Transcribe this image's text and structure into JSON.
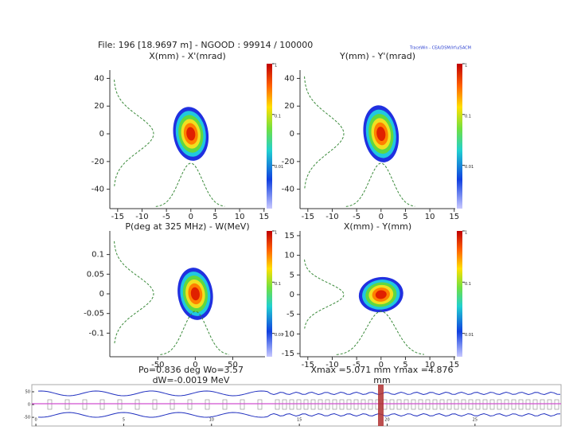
{
  "header": {
    "file_line": "File: 196 [18.9697 m] - NGOOD : 99914 / 100000",
    "brand": "TraceWin - CEA/DSM/Irfu/SACM"
  },
  "chart_data": [
    {
      "type": "density",
      "title": "X(mm) - X'(mrad)",
      "xlim": [
        -16.6,
        15.2
      ],
      "ylim": [
        -54,
        46
      ],
      "xticks": [
        -15,
        -10,
        -5,
        0,
        5,
        10,
        15
      ],
      "yticks": [
        -40,
        -20,
        0,
        20,
        40
      ],
      "colorbar_lim": [
        0.0014,
        1
      ],
      "colorbar_ticks": [
        1,
        0.1,
        0.01
      ],
      "colorbar_log": true
    },
    {
      "type": "density",
      "title": "Y(mm) - Y'(mrad)",
      "xlim": [
        -16.6,
        15.2
      ],
      "ylim": [
        -54,
        46
      ],
      "xticks": [
        -15,
        -10,
        -5,
        0,
        5,
        10,
        15
      ],
      "yticks": [
        -40,
        -20,
        0,
        20,
        40
      ],
      "colorbar_lim": [
        0.0014,
        1
      ],
      "colorbar_ticks": [
        1,
        0.1,
        0.01
      ],
      "colorbar_log": true
    },
    {
      "type": "density",
      "title": "P(deg at 325 MHz) - W(MeV)",
      "xlim": [
        -114,
        93
      ],
      "ylim": [
        -0.16,
        0.16
      ],
      "xticks": [
        -50,
        0,
        50
      ],
      "yticks": [
        -0.1,
        -0.05,
        0,
        0.05,
        0.1
      ],
      "colorbar_lim": [
        0.0035,
        1
      ],
      "colorbar_ticks": [
        1,
        0.1,
        0.01
      ],
      "colorbar_log": true
    },
    {
      "type": "density",
      "title": "X(mm) - Y(mm)",
      "xlim": [
        -16.6,
        15.2
      ],
      "ylim": [
        -15.8,
        16.2
      ],
      "xticks": [
        -15,
        -10,
        -5,
        0,
        5,
        10,
        15
      ],
      "yticks": [
        -15,
        -10,
        -5,
        0,
        5,
        10,
        15
      ],
      "colorbar_lim": [
        0.0035,
        1
      ],
      "colorbar_ticks": [
        1,
        0.1,
        0.01
      ],
      "colorbar_log": true
    },
    {
      "type": "envelope",
      "xlim": [
        -0.23,
        29.9
      ],
      "ylim": [
        -84,
        78
      ],
      "xticks": [
        0,
        5,
        10,
        15,
        20,
        25
      ],
      "yticks": [
        -50,
        0,
        50
      ]
    }
  ],
  "footer": {
    "left_line1": "Po=0.836 deg  Wo=3.57",
    "left_line2": "dW=-0.0019 MeV",
    "right_line1": "Xmax =5.071 mm  Ymax =4.876",
    "right_line2": "mm"
  }
}
